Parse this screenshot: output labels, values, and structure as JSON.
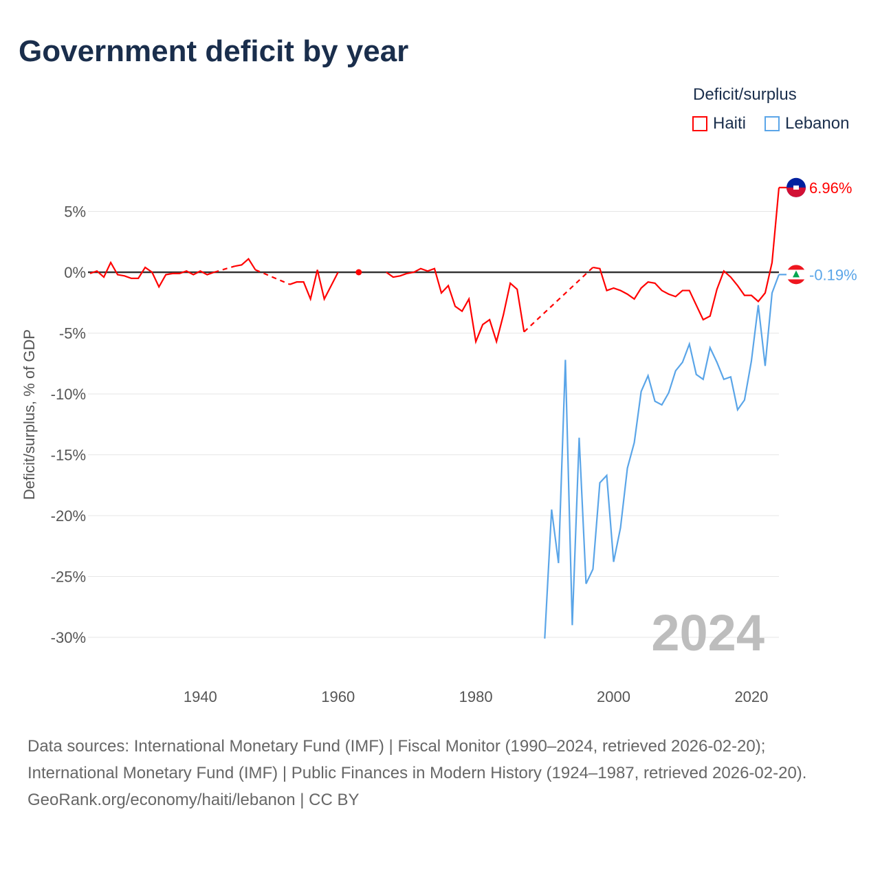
{
  "title": "Government deficit by year",
  "legend": {
    "title": "Deficit/surplus",
    "items": [
      {
        "name": "Haiti",
        "color": "#ff0000"
      },
      {
        "name": "Lebanon",
        "color": "#5aa5e8"
      }
    ]
  },
  "footer": {
    "sources": "Data sources: International Monetary Fund (IMF) | Fiscal Monitor (1990–2024, retrieved 2026-02-20); International Monetary Fund (IMF) | Public Finances in Modern History (1924–1987, retrieved 2026-02-20).",
    "credit": "GeoRank.org/economy/haiti/lebanon | CC BY"
  },
  "chart_data": {
    "type": "line",
    "title": "Government deficit by year",
    "ylabel": "Deficit/surplus, % of GDP",
    "xlabel": "",
    "xlim": [
      1924,
      2024
    ],
    "ylim": [
      -32,
      8
    ],
    "xticks": [
      1940,
      1960,
      1980,
      2000,
      2020
    ],
    "yticks": [
      {
        "v": 5,
        "label": "5%"
      },
      {
        "v": 0,
        "label": "0%"
      },
      {
        "v": -5,
        "label": "-5%"
      },
      {
        "v": -10,
        "label": "-10%"
      },
      {
        "v": -15,
        "label": "-15%"
      },
      {
        "v": -20,
        "label": "-20%"
      },
      {
        "v": -25,
        "label": "-25%"
      },
      {
        "v": -30,
        "label": "-30%"
      }
    ],
    "year_label": "2024",
    "series": [
      {
        "name": "Haiti",
        "color": "#ff0000",
        "end_label": "6.96%",
        "start_year": 1924,
        "values": [
          -0.1,
          0.1,
          -0.4,
          0.8,
          -0.2,
          -0.3,
          -0.5,
          -0.5,
          0.4,
          0,
          -1.2,
          -0.2,
          -0.1,
          -0.1,
          0.1,
          -0.2,
          0.1,
          -0.2,
          0,
          null,
          null,
          0.5,
          0.6,
          1.1,
          0.2,
          null,
          null,
          null,
          null,
          -1.0,
          -0.8,
          -0.8,
          -2.2,
          0.2,
          -2.2,
          -1.1,
          0,
          null,
          null,
          0,
          null,
          null,
          null,
          0,
          -0.4,
          -0.3,
          -0.1,
          0,
          0.3,
          0.1,
          0.3,
          -1.7,
          -1.1,
          -2.8,
          -3.2,
          -2.2,
          -5.7,
          -4.3,
          -3.9,
          -5.7,
          -3.5,
          -0.9,
          -1.4,
          -4.9,
          null,
          null,
          null,
          null,
          null,
          null,
          null,
          null,
          null,
          0.4,
          0.3,
          -1.5,
          -1.3,
          -1.5,
          -1.8,
          -2.2,
          -1.3,
          -0.8,
          -0.9,
          -1.5,
          -1.8,
          -2.0,
          -1.5,
          -1.5,
          -2.7,
          -3.9,
          -3.6,
          -1.4,
          0.1,
          -0.4,
          -1.1,
          -1.9,
          -1.9,
          -2.4,
          -1.7,
          0.8,
          6.96
        ]
      },
      {
        "name": "Lebanon",
        "color": "#5aa5e8",
        "end_label": "-0.19%",
        "start_year": 1990,
        "values": [
          -30.1,
          -19.5,
          -23.9,
          -7.2,
          -29.0,
          -13.6,
          -25.6,
          -24.4,
          -17.3,
          -16.7,
          -23.8,
          -21.0,
          -16.1,
          -14.0,
          -9.8,
          -8.5,
          -10.6,
          -10.9,
          -9.9,
          -8.1,
          -7.4,
          -5.9,
          -8.4,
          -8.8,
          -6.2,
          -7.4,
          -8.8,
          -8.6,
          -11.3,
          -10.5,
          -7.3,
          -2.7,
          -7.7,
          -1.7,
          -0.19
        ]
      }
    ]
  }
}
